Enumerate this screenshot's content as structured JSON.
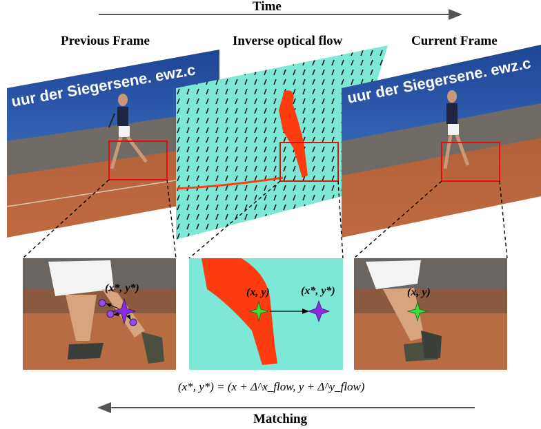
{
  "labels": {
    "time": "Time",
    "previous_frame": "Previous Frame",
    "inverse_flow": "Inverse optical flow",
    "current_frame": "Current Frame",
    "matching": "Matching"
  },
  "banner_text": "uur der Siegersene. ewz.c",
  "math": {
    "xy_star": "(x*, y*)",
    "xy": "(x, y)",
    "equation": "(x*, y*) = (x + Δ^x_flow, y + Δ^y_flow)"
  },
  "colors": {
    "arrow": "#555555",
    "sky_banner": "#2a4f9e",
    "clay": "#b8623a",
    "flow_bg": "#7ee8d6",
    "flow_player": "#ff3b10",
    "box": "#e01010",
    "star_green": "#3ddc3d",
    "star_purple": "#8a2be2"
  }
}
